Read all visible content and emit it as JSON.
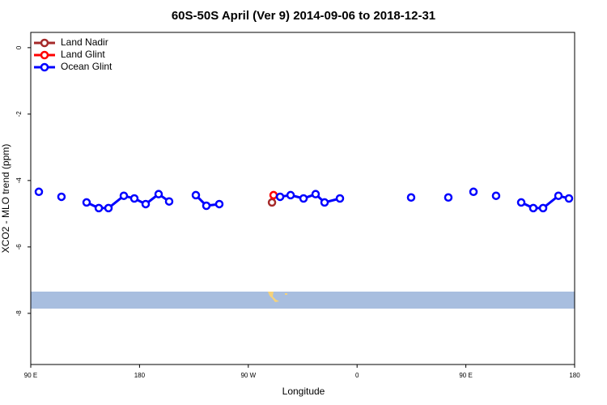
{
  "chart_data": {
    "type": "line",
    "title": "60S-50S April (Ver 9)   2014-09-06 to 2018-12-31",
    "xlabel": "Longitude",
    "ylabel": "XCO2 - MLO trend (ppm)",
    "xlim": [
      90,
      540
    ],
    "ylim": [
      -9.54,
      0.46
    ],
    "xticks": [
      {
        "value": 90,
        "label": "90 E"
      },
      {
        "value": 180,
        "label": "180"
      },
      {
        "value": 270,
        "label": "90 W"
      },
      {
        "value": 360,
        "label": "0"
      },
      {
        "value": 450,
        "label": "90 E"
      },
      {
        "value": 540,
        "label": "180"
      }
    ],
    "yticks": [
      0,
      -2,
      -4,
      -6,
      -8
    ],
    "legend": "top-left",
    "series": [
      {
        "name": "Land Nadir",
        "color": "#a52a2a",
        "x": [
          289.6
        ],
        "values": [
          -4.66
        ]
      },
      {
        "name": "Land Glint",
        "color": "#ff0000",
        "x": [
          290.9
        ],
        "values": [
          -4.44
        ]
      },
      {
        "name": "Ocean Glint",
        "color": "#0000ff",
        "x": [
          96.7,
          null,
          115.4,
          null,
          136.2,
          146.3,
          154.3,
          167,
          175.7,
          185.1,
          195.8,
          204.5,
          null,
          226.6,
          235.3,
          246,
          null,
          296.3,
          305,
          315.7,
          325.7,
          333.1,
          345.8,
          null,
          404.7,
          null,
          435.5,
          null,
          456.3,
          null,
          475,
          null,
          495.8,
          505.8,
          513.9,
          526.6,
          535.3
        ],
        "values": [
          -4.34,
          null,
          -4.49,
          null,
          -4.66,
          -4.83,
          -4.83,
          -4.46,
          -4.54,
          -4.71,
          -4.41,
          -4.63,
          null,
          -4.44,
          -4.76,
          -4.71,
          null,
          -4.49,
          -4.44,
          -4.54,
          -4.41,
          -4.66,
          -4.54,
          null,
          -4.51,
          null,
          -4.51,
          null,
          -4.34,
          null,
          -4.46,
          null,
          -4.66,
          -4.83,
          -4.83,
          -4.46,
          -4.54
        ]
      }
    ]
  }
}
